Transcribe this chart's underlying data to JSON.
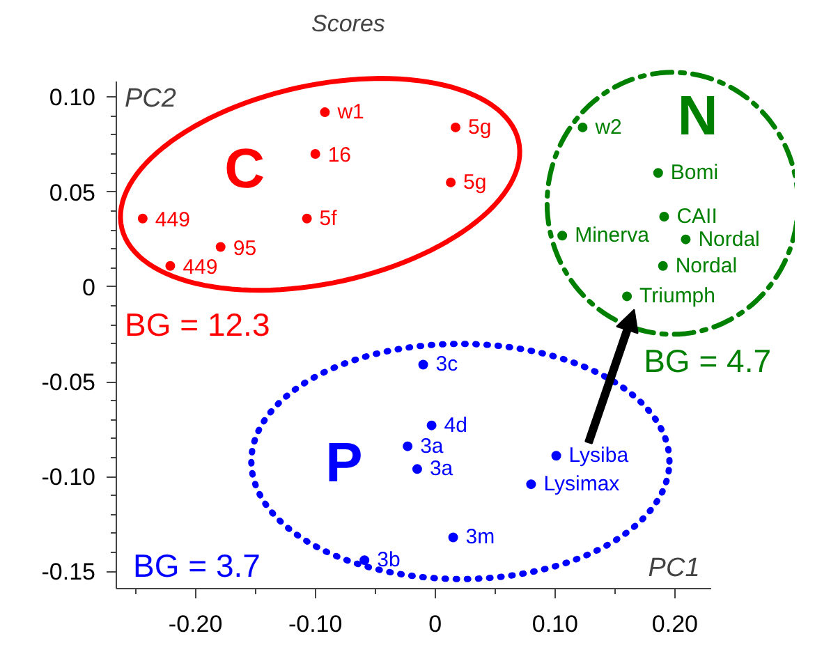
{
  "chart_data": {
    "type": "scatter",
    "title": "Scores",
    "xlabel": "PC1",
    "ylabel": "PC2",
    "xlim": [
      -0.266,
      0.23
    ],
    "ylim": [
      -0.159,
      0.108
    ],
    "xticks": [
      {
        "value": -0.2,
        "label": "-0.20"
      },
      {
        "value": -0.1,
        "label": "-0.10"
      },
      0,
      {
        "value": 0.1,
        "label": "0.10"
      },
      {
        "value": 0.2,
        "label": "0.20"
      }
    ],
    "yticks": [
      {
        "value": -0.15,
        "label": "-0.15"
      },
      {
        "value": -0.1,
        "label": "-0.10"
      },
      {
        "value": -0.05,
        "label": "-0.05"
      },
      0,
      {
        "value": 0.05,
        "label": "0.05"
      },
      {
        "value": 0.1,
        "label": "0.10"
      }
    ],
    "grid": false,
    "legend": false,
    "marker": "circle",
    "series": [
      {
        "name": "C",
        "color": "#ff0000",
        "x": [
          -0.092,
          -0.1,
          0.017,
          0.013,
          -0.244,
          -0.107,
          -0.179,
          -0.221
        ],
        "values": [
          0.092,
          0.07,
          0.084,
          0.055,
          0.036,
          0.036,
          0.021,
          0.011
        ]
      },
      {
        "name": "N",
        "color": "#008000",
        "x": [
          0.123,
          0.186,
          0.191,
          0.106,
          0.209,
          0.19,
          0.16
        ],
        "values": [
          0.084,
          0.06,
          0.037,
          0.027,
          0.025,
          0.011,
          -0.005
        ]
      },
      {
        "name": "P",
        "color": "#0000ff",
        "x": [
          -0.01,
          -0.003,
          -0.023,
          -0.015,
          0.101,
          0.08,
          0.015,
          -0.059
        ],
        "values": [
          -0.041,
          -0.073,
          -0.084,
          -0.096,
          -0.089,
          -0.104,
          -0.132,
          -0.144
        ]
      }
    ],
    "annotations": [
      {
        "text": "w1",
        "x": -0.092,
        "y": 0.092
      },
      {
        "text": "16",
        "x": -0.1,
        "y": 0.07
      },
      {
        "text": "5g",
        "x": 0.017,
        "y": 0.084
      },
      {
        "text": "5g",
        "x": 0.013,
        "y": 0.055
      },
      {
        "text": "449",
        "x": -0.244,
        "y": 0.036
      },
      {
        "text": "5f",
        "x": -0.107,
        "y": 0.036
      },
      {
        "text": "95",
        "x": -0.179,
        "y": 0.021
      },
      {
        "text": "449",
        "x": -0.221,
        "y": 0.011
      },
      {
        "text": "w2",
        "x": 0.123,
        "y": 0.084
      },
      {
        "text": "Bomi",
        "x": 0.186,
        "y": 0.06
      },
      {
        "text": "CAII",
        "x": 0.191,
        "y": 0.037
      },
      {
        "text": "Minerva",
        "x": 0.106,
        "y": 0.027
      },
      {
        "text": "Nordal",
        "x": 0.209,
        "y": 0.025
      },
      {
        "text": "Nordal",
        "x": 0.19,
        "y": 0.011
      },
      {
        "text": "Triumph",
        "x": 0.16,
        "y": -0.005
      },
      {
        "text": "3c",
        "x": -0.01,
        "y": -0.041
      },
      {
        "text": "4d",
        "x": -0.003,
        "y": -0.073
      },
      {
        "text": "3a",
        "x": -0.023,
        "y": -0.084
      },
      {
        "text": "3a",
        "x": -0.015,
        "y": -0.096
      },
      {
        "text": "Lysiba",
        "x": 0.101,
        "y": -0.089
      },
      {
        "text": "Lysimax",
        "x": 0.08,
        "y": -0.104
      },
      {
        "text": "3m",
        "x": 0.015,
        "y": -0.132
      },
      {
        "text": "3b",
        "x": -0.059,
        "y": -0.144
      },
      "BG = 12.3",
      "BG = 4.7",
      "BG = 3.7"
    ]
  }
}
